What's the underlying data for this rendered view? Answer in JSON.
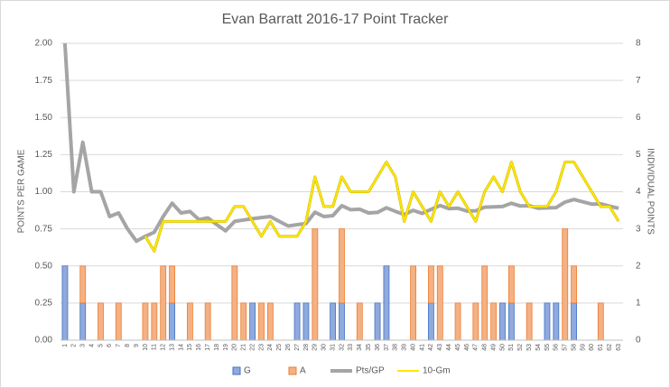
{
  "chart_data": {
    "type": "combo",
    "title": "Evan Barratt 2016-17 Point Tracker",
    "ylabel": "POINTS PER GAME",
    "y2label": "INDIVIDUAL POINTS",
    "categories": [
      "1",
      "2",
      "3",
      "4",
      "5",
      "6",
      "7",
      "8",
      "9",
      "10",
      "11",
      "12",
      "13",
      "14",
      "15",
      "16",
      "17",
      "18",
      "19",
      "20",
      "21",
      "22",
      "23",
      "24",
      "25",
      "26",
      "27",
      "28",
      "29",
      "30",
      "31",
      "32",
      "33",
      "34",
      "35",
      "36",
      "37",
      "38",
      "39",
      "40",
      "41",
      "42",
      "43",
      "44",
      "45",
      "46",
      "47",
      "48",
      "49",
      "50",
      "51",
      "52",
      "53",
      "54",
      "55",
      "56",
      "57",
      "58",
      "59",
      "60",
      "61",
      "62",
      "63"
    ],
    "ylim": [
      0,
      2
    ],
    "yticks": [
      {
        "value": 0,
        "label": "0.00"
      },
      {
        "value": 0.25,
        "label": "0.25"
      },
      {
        "value": 0.5,
        "label": "0.50"
      },
      {
        "value": 0.75,
        "label": "0.75"
      },
      {
        "value": 1,
        "label": "1.00"
      },
      {
        "value": 1.25,
        "label": "1.25"
      },
      {
        "value": 1.5,
        "label": "1.50"
      },
      {
        "value": 1.75,
        "label": "1.75"
      },
      {
        "value": 2,
        "label": "2.00"
      }
    ],
    "y2lim": [
      0,
      8
    ],
    "y2ticks": [
      0,
      1,
      2,
      3,
      4,
      5,
      6,
      7,
      8
    ],
    "grid": true,
    "legend": "bottom",
    "series": [
      {
        "name": "G",
        "type": "bar",
        "axis": "y2",
        "color": "#8faadc",
        "values": [
          2,
          0,
          1,
          0,
          0,
          0,
          0,
          0,
          0,
          0,
          0,
          0,
          1,
          0,
          0,
          0,
          0,
          0,
          0,
          0,
          0,
          1,
          0,
          0,
          0,
          0,
          1,
          1,
          0,
          0,
          1,
          1,
          0,
          0,
          0,
          1,
          2,
          0,
          0,
          0,
          0,
          1,
          0,
          0,
          0,
          0,
          0,
          0,
          0,
          1,
          1,
          0,
          0,
          0,
          1,
          1,
          0,
          1,
          0,
          0,
          0,
          0,
          0
        ]
      },
      {
        "name": "A",
        "type": "bar",
        "axis": "y2",
        "color": "#f4b183",
        "values": [
          0,
          0,
          1,
          0,
          1,
          0,
          1,
          0,
          0,
          1,
          1,
          2,
          1,
          0,
          1,
          0,
          1,
          0,
          0,
          2,
          1,
          0,
          1,
          1,
          0,
          0,
          0,
          0,
          3,
          0,
          0,
          2,
          0,
          1,
          0,
          0,
          0,
          0,
          0,
          2,
          0,
          1,
          2,
          0,
          1,
          0,
          1,
          2,
          1,
          0,
          1,
          0,
          1,
          0,
          0,
          0,
          3,
          1,
          0,
          0,
          1,
          0,
          0
        ]
      },
      {
        "name": "Pts/GP",
        "type": "line",
        "color": "#a5a5a5",
        "values": [
          2.0,
          1.0,
          1.333,
          1.0,
          1.0,
          0.833,
          0.857,
          0.75,
          0.667,
          0.7,
          0.727,
          0.833,
          0.923,
          0.857,
          0.867,
          0.813,
          0.824,
          0.778,
          0.737,
          0.8,
          0.81,
          0.818,
          0.826,
          0.833,
          0.8,
          0.769,
          0.778,
          0.786,
          0.862,
          0.833,
          0.839,
          0.906,
          0.879,
          0.882,
          0.857,
          0.861,
          0.892,
          0.868,
          0.846,
          0.875,
          0.854,
          0.881,
          0.907,
          0.886,
          0.889,
          0.87,
          0.872,
          0.896,
          0.898,
          0.9,
          0.922,
          0.904,
          0.906,
          0.889,
          0.891,
          0.893,
          0.93,
          0.948,
          0.932,
          0.917,
          0.918,
          0.903,
          0.889
        ]
      },
      {
        "name": "10-Gm",
        "type": "line",
        "color": "#ffe600",
        "values": [
          null,
          null,
          null,
          null,
          null,
          null,
          null,
          null,
          null,
          0.7,
          0.6,
          0.8,
          0.8,
          0.8,
          0.8,
          0.8,
          0.8,
          0.8,
          0.8,
          0.9,
          0.9,
          0.8,
          0.7,
          0.8,
          0.7,
          0.7,
          0.7,
          0.8,
          1.1,
          0.9,
          0.9,
          1.1,
          1.0,
          1.0,
          1.0,
          1.1,
          1.2,
          1.1,
          0.8,
          1.0,
          0.9,
          0.8,
          1.0,
          0.9,
          1.0,
          0.9,
          0.8,
          1.0,
          1.1,
          1.0,
          1.2,
          1.0,
          0.9,
          0.9,
          0.9,
          1.0,
          1.2,
          1.2,
          1.1,
          1.0,
          0.9,
          0.9,
          0.8
        ]
      }
    ]
  }
}
